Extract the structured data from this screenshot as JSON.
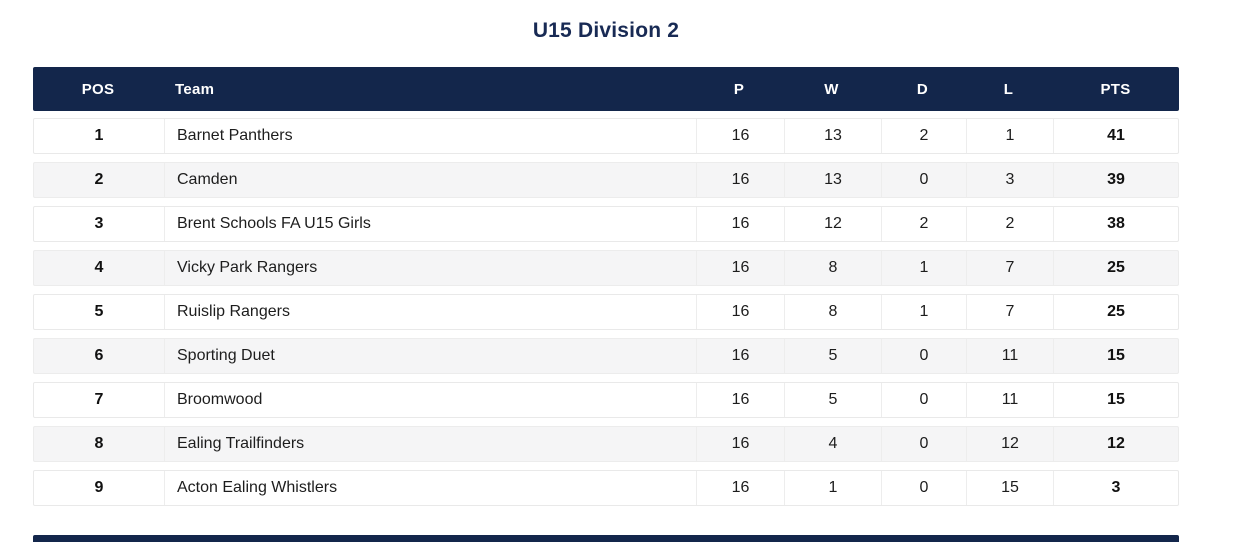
{
  "title": "U15 Division 2",
  "table": {
    "headers": [
      "POS",
      "Team",
      "P",
      "W",
      "D",
      "L",
      "PTS"
    ],
    "rows": [
      {
        "pos": "1",
        "team": "Barnet Panthers",
        "p": "16",
        "w": "13",
        "d": "2",
        "l": "1",
        "pts": "41"
      },
      {
        "pos": "2",
        "team": "Camden",
        "p": "16",
        "w": "13",
        "d": "0",
        "l": "3",
        "pts": "39"
      },
      {
        "pos": "3",
        "team": "Brent Schools FA U15 Girls",
        "p": "16",
        "w": "12",
        "d": "2",
        "l": "2",
        "pts": "38"
      },
      {
        "pos": "4",
        "team": "Vicky Park Rangers",
        "p": "16",
        "w": "8",
        "d": "1",
        "l": "7",
        "pts": "25"
      },
      {
        "pos": "5",
        "team": "Ruislip Rangers",
        "p": "16",
        "w": "8",
        "d": "1",
        "l": "7",
        "pts": "25"
      },
      {
        "pos": "6",
        "team": "Sporting Duet",
        "p": "16",
        "w": "5",
        "d": "0",
        "l": "11",
        "pts": "15"
      },
      {
        "pos": "7",
        "team": "Broomwood",
        "p": "16",
        "w": "5",
        "d": "0",
        "l": "11",
        "pts": "15"
      },
      {
        "pos": "8",
        "team": "Ealing Trailfinders",
        "p": "16",
        "w": "4",
        "d": "0",
        "l": "12",
        "pts": "12"
      },
      {
        "pos": "9",
        "team": "Acton Ealing Whistlers",
        "p": "16",
        "w": "1",
        "d": "0",
        "l": "15",
        "pts": "3"
      }
    ]
  },
  "colors": {
    "header_bg": "#13264B",
    "title_text": "#182A54",
    "row_alt_bg": "#F5F5F6",
    "row_border": "#E9E9E9",
    "divider": "#EDEDED",
    "header_text": "#FFFFFF",
    "body_text": "#1D1D1D"
  }
}
